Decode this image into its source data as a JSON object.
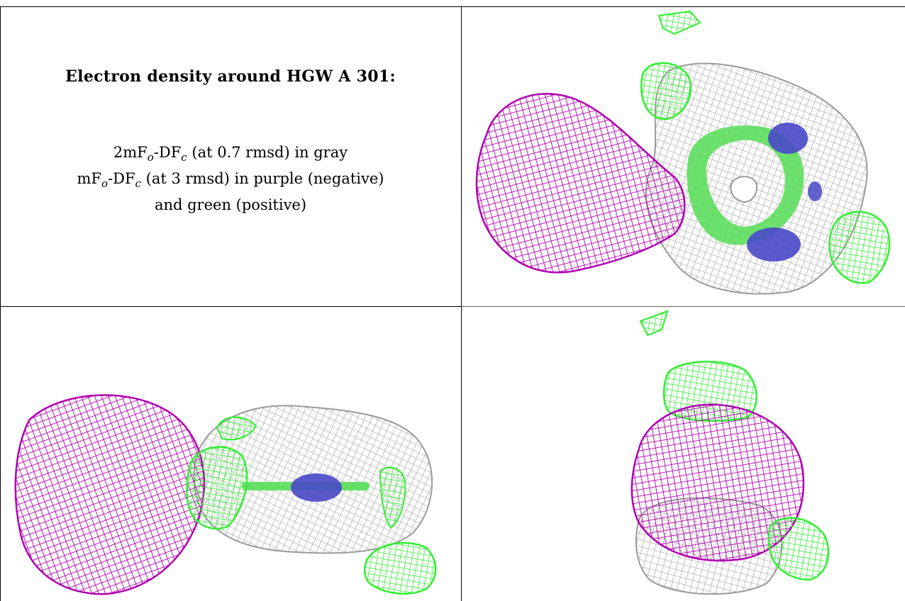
{
  "caption": {
    "title": "Electron density around HGW A 301:",
    "line1": {
      "prefix": "2mF",
      "sub1": "o",
      "mid": "-DF",
      "sub2": "c",
      "suffix": " (at 0.7 rmsd) in gray"
    },
    "line2": {
      "prefix": "mF",
      "sub1": "o",
      "mid": "-DF",
      "sub2": "c",
      "suffix": " (at 3 rmsd) in purple (negative)"
    },
    "line3": "and green (positive)"
  },
  "colors": {
    "gray_mesh": "#b4b4b4",
    "purple_mesh": "#b000b0",
    "green_mesh": "#33ee33",
    "blue_atoms": "#4848c8",
    "background": "#ffffff"
  },
  "panels": [
    {
      "name": "top-right-view"
    },
    {
      "name": "bottom-left-view"
    },
    {
      "name": "bottom-right-view"
    }
  ]
}
